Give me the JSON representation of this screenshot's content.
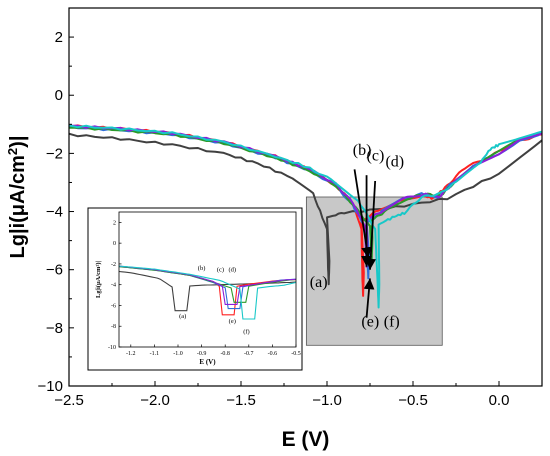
{
  "chart_data": [
    {
      "type": "line",
      "role": "main",
      "xlabel": "E (V)",
      "ylabel_prefix": "Lg|i(μA/cm",
      "ylabel_sup": "2",
      "ylabel_suffix": ")|",
      "xlim": [
        -2.5,
        0.25
      ],
      "ylim": [
        -10,
        3
      ],
      "xticks": [
        -2.5,
        -2.0,
        -1.5,
        -1.0,
        -0.5,
        0.0
      ],
      "xtick_labels": [
        "−2.5",
        "−2.0",
        "−1.5",
        "−1.0",
        "−0.5",
        "0.0"
      ],
      "yticks": [
        -10,
        -8,
        -6,
        -4,
        -2,
        0,
        2
      ],
      "ytick_labels": [
        "−10",
        "−8",
        "−6",
        "−4",
        "−2",
        "0",
        "2"
      ],
      "highlight_box": {
        "x": [
          -1.12,
          -0.33
        ],
        "y": [
          -8.6,
          -3.5
        ],
        "color": "#c8c8c8"
      },
      "series": [
        {
          "label": "(a)",
          "color": "#404040",
          "ecorr": -0.99,
          "low": -6.5,
          "cathodic": [
            [
              -2.5,
              -1.35
            ],
            [
              -2.2,
              -1.5
            ],
            [
              -1.9,
              -1.7
            ],
            [
              -1.6,
              -2.0
            ],
            [
              -1.4,
              -2.35
            ],
            [
              -1.2,
              -2.85
            ],
            [
              -1.08,
              -3.4
            ],
            [
              -1.0,
              -4.6
            ]
          ],
          "anodic": [
            [
              -1.0,
              -4.2
            ],
            [
              -0.9,
              -4.05
            ],
            [
              -0.6,
              -3.85
            ],
            [
              -0.3,
              -3.55
            ],
            [
              0.0,
              -2.7
            ],
            [
              0.25,
              -1.55
            ]
          ]
        },
        {
          "label": "(b)",
          "color": "#ff2020",
          "ecorr": -0.79,
          "low": -6.9,
          "cathodic": [
            [
              -2.5,
              -1.05
            ],
            [
              -2.2,
              -1.15
            ],
            [
              -1.9,
              -1.3
            ],
            [
              -1.6,
              -1.6
            ],
            [
              -1.3,
              -2.1
            ],
            [
              -1.1,
              -2.55
            ],
            [
              -0.95,
              -3.1
            ],
            [
              -0.85,
              -3.7
            ],
            [
              -0.8,
              -4.6
            ]
          ],
          "anodic": [
            [
              -0.8,
              -4.35
            ],
            [
              -0.7,
              -3.95
            ],
            [
              -0.58,
              -3.6
            ],
            [
              -0.45,
              -3.45
            ],
            [
              -0.38,
              -3.55
            ],
            [
              -0.3,
              -3.1
            ],
            [
              -0.2,
              -2.5
            ],
            [
              -0.05,
              -2.1
            ],
            [
              0.1,
              -1.6
            ],
            [
              0.25,
              -1.35
            ]
          ]
        },
        {
          "label": "(c)",
          "color": "#2f6fd8",
          "ecorr": -0.76,
          "low": -6.3,
          "cathodic": [
            [
              -2.5,
              -1.1
            ],
            [
              -2.2,
              -1.2
            ],
            [
              -1.9,
              -1.35
            ],
            [
              -1.6,
              -1.65
            ],
            [
              -1.3,
              -2.15
            ],
            [
              -1.1,
              -2.6
            ],
            [
              -0.95,
              -3.1
            ],
            [
              -0.85,
              -3.8
            ],
            [
              -0.77,
              -4.6
            ]
          ],
          "anodic": [
            [
              -0.77,
              -4.4
            ],
            [
              -0.68,
              -4.0
            ],
            [
              -0.56,
              -3.55
            ],
            [
              -0.45,
              -3.4
            ],
            [
              -0.36,
              -3.5
            ],
            [
              -0.27,
              -3.0
            ],
            [
              -0.15,
              -2.4
            ],
            [
              0.0,
              -2.0
            ],
            [
              0.12,
              -1.55
            ],
            [
              0.25,
              -1.3
            ]
          ]
        },
        {
          "label": "(d)",
          "color": "#2a9a2a",
          "ecorr": -0.74,
          "low": -5.7,
          "cathodic": [
            [
              -2.5,
              -1.1
            ],
            [
              -2.2,
              -1.2
            ],
            [
              -1.9,
              -1.35
            ],
            [
              -1.6,
              -1.65
            ],
            [
              -1.3,
              -2.15
            ],
            [
              -1.1,
              -2.6
            ],
            [
              -0.95,
              -3.1
            ],
            [
              -0.85,
              -3.75
            ],
            [
              -0.75,
              -4.5
            ]
          ],
          "anodic": [
            [
              -0.74,
              -4.3
            ],
            [
              -0.65,
              -3.95
            ],
            [
              -0.53,
              -3.55
            ],
            [
              -0.43,
              -3.4
            ],
            [
              -0.34,
              -3.45
            ],
            [
              -0.25,
              -2.95
            ],
            [
              -0.12,
              -2.35
            ],
            [
              0.0,
              -1.95
            ],
            [
              0.12,
              -1.5
            ],
            [
              0.25,
              -1.3
            ]
          ]
        },
        {
          "label": "(e)",
          "color": "#8b1fd8",
          "ecorr": -0.77,
          "low": -5.9,
          "cathodic": [
            [
              -2.5,
              -1.05
            ],
            [
              -2.2,
              -1.15
            ],
            [
              -1.9,
              -1.3
            ],
            [
              -1.6,
              -1.6
            ],
            [
              -1.3,
              -2.1
            ],
            [
              -1.1,
              -2.55
            ],
            [
              -0.95,
              -3.05
            ],
            [
              -0.85,
              -3.7
            ],
            [
              -0.78,
              -4.5
            ]
          ],
          "anodic": [
            [
              -0.77,
              -4.3
            ],
            [
              -0.67,
              -3.95
            ],
            [
              -0.55,
              -3.55
            ],
            [
              -0.44,
              -3.4
            ],
            [
              -0.35,
              -3.5
            ],
            [
              -0.26,
              -3.0
            ],
            [
              -0.13,
              -2.4
            ],
            [
              0.0,
              -2.0
            ],
            [
              0.12,
              -1.55
            ],
            [
              0.25,
              -1.3
            ]
          ]
        },
        {
          "label": "(f)",
          "color": "#18c8c8",
          "ecorr": -0.7,
          "low": -7.3,
          "cathodic": [
            [
              -2.5,
              -1.05
            ],
            [
              -2.2,
              -1.15
            ],
            [
              -1.9,
              -1.3
            ],
            [
              -1.6,
              -1.6
            ],
            [
              -1.3,
              -2.1
            ],
            [
              -1.1,
              -2.5
            ],
            [
              -0.95,
              -3.0
            ],
            [
              -0.82,
              -3.6
            ],
            [
              -0.72,
              -4.6
            ]
          ],
          "anodic": [
            [
              -0.7,
              -4.45
            ],
            [
              -0.62,
              -4.2
            ],
            [
              -0.55,
              -4.05
            ],
            [
              -0.45,
              -3.5
            ],
            [
              -0.35,
              -3.4
            ],
            [
              -0.25,
              -3.0
            ],
            [
              -0.12,
              -2.4
            ],
            [
              -0.05,
              -1.85
            ],
            [
              0.0,
              -1.7
            ],
            [
              0.12,
              -1.45
            ],
            [
              0.25,
              -1.25
            ]
          ]
        }
      ],
      "annotations": [
        {
          "text": "(a)",
          "x": -1.1,
          "y": -6.6
        },
        {
          "text": "(b)",
          "x": -0.85,
          "y": -2.05
        },
        {
          "text": "(c)",
          "x": -0.77,
          "y": -2.25
        },
        {
          "text": "(d)",
          "x": -0.66,
          "y": -2.45
        },
        {
          "text": "(e)",
          "x": -0.8,
          "y": -7.95
        },
        {
          "text": "(f)",
          "x": -0.67,
          "y": -7.95
        }
      ],
      "arrows": [
        {
          "from": [
            -0.84,
            -2.55
          ],
          "to": [
            -0.76,
            -5.6
          ]
        },
        {
          "from": [
            -0.77,
            -2.75
          ],
          "to": [
            -0.77,
            -5.9
          ]
        },
        {
          "from": [
            -0.72,
            -2.95
          ],
          "to": [
            -0.75,
            -6.0
          ]
        },
        {
          "from": [
            -0.77,
            -7.65
          ],
          "to": [
            -0.75,
            -6.3
          ]
        }
      ]
    },
    {
      "type": "line",
      "role": "inset",
      "xlabel": "E (V)",
      "ylabel": "Lg|i(μA/cm²)|",
      "xlim": [
        -1.25,
        -0.5
      ],
      "ylim": [
        -10,
        3
      ],
      "xticks": [
        -1.2,
        -1.1,
        -1.0,
        -0.9,
        -0.8,
        -0.7,
        -0.6,
        -0.5
      ],
      "xtick_labels": [
        "-1.2",
        "-1.1",
        "-1.0",
        "-0.9",
        "-0.8",
        "-0.7",
        "-0.6",
        "-0.5"
      ],
      "yticks": [
        -10,
        -8,
        -6,
        -4,
        -2,
        0,
        2
      ],
      "ytick_labels": [
        "-10",
        "-8",
        "-6",
        "-4",
        "-2",
        "0",
        "2"
      ],
      "annotations": [
        {
          "text": "(a)",
          "x": -0.98,
          "y": -7.2
        },
        {
          "text": "(b)",
          "x": -0.9,
          "y": -2.6
        },
        {
          "text": "(c)",
          "x": -0.82,
          "y": -2.75
        },
        {
          "text": "(d)",
          "x": -0.77,
          "y": -2.75
        },
        {
          "text": "(e)",
          "x": -0.77,
          "y": -7.7
        },
        {
          "text": "(f)",
          "x": -0.71,
          "y": -8.7
        }
      ]
    }
  ]
}
